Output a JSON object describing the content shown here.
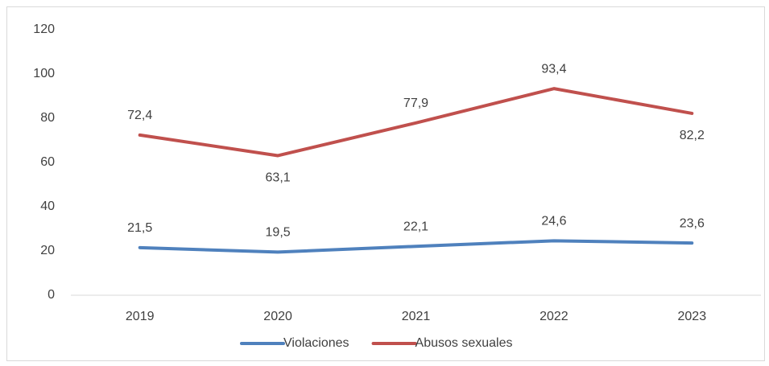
{
  "chart_data": {
    "type": "line",
    "categories": [
      "2019",
      "2020",
      "2021",
      "2022",
      "2023"
    ],
    "series": [
      {
        "name": "Violaciones",
        "color": "#4f81bd",
        "values": [
          21.5,
          19.5,
          22.1,
          24.6,
          23.6
        ],
        "value_labels": [
          "21,5",
          "19,5",
          "22,1",
          "24,6",
          "23,6"
        ]
      },
      {
        "name": "Abusos sexuales",
        "color": "#c0504d",
        "values": [
          72.4,
          63.1,
          77.9,
          93.4,
          82.2
        ],
        "value_labels": [
          "72,4",
          "63,1",
          "77,9",
          "93,4",
          "82,2"
        ]
      }
    ],
    "ylim": [
      0,
      120
    ],
    "yticks": [
      0,
      20,
      40,
      60,
      80,
      100,
      120
    ],
    "grid": false,
    "legend": "bottom"
  }
}
